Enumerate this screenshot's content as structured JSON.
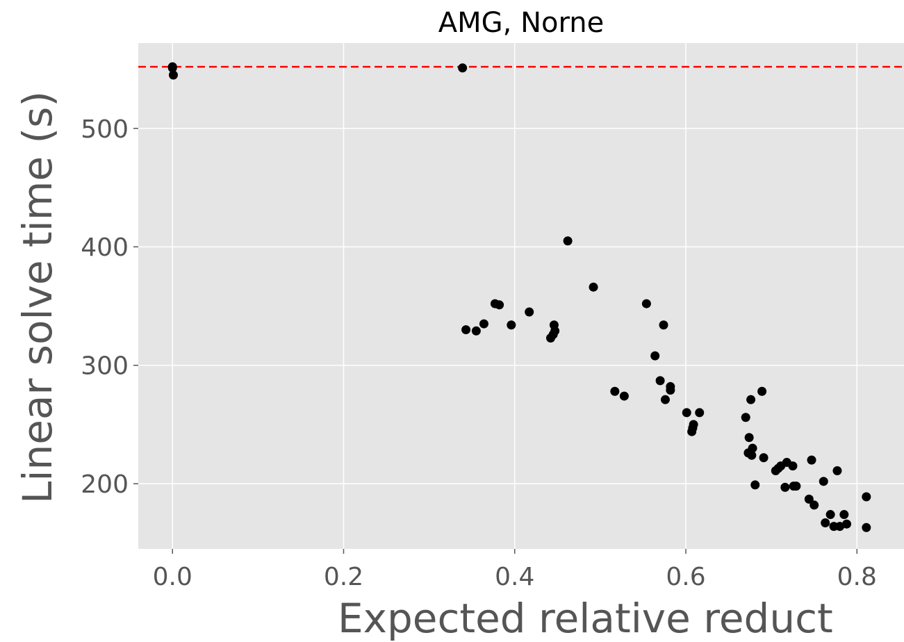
{
  "chart_data": {
    "type": "scatter",
    "title": "AMG, Norne",
    "xlabel": "Expected relative reduct",
    "ylabel": "Linear solve time (s)",
    "xlim": [
      -0.04,
      0.855
    ],
    "ylim": [
      145,
      572
    ],
    "xticks": [
      {
        "value": 0.0,
        "label": "0.0"
      },
      {
        "value": 0.2,
        "label": "0.2"
      },
      {
        "value": 0.4,
        "label": "0.4"
      },
      {
        "value": 0.6,
        "label": "0.6"
      },
      {
        "value": 0.8,
        "label": "0.8"
      }
    ],
    "yticks": [
      {
        "value": 200,
        "label": "200"
      },
      {
        "value": 300,
        "label": "300"
      },
      {
        "value": 400,
        "label": "400"
      },
      {
        "value": 500,
        "label": "500"
      }
    ],
    "grid": true,
    "background_color": "#e5e5e5",
    "point_color": "#000000",
    "reference_line": {
      "y": 552,
      "color": "#ff0000",
      "style": "dashed"
    },
    "series": [
      {
        "points": [
          [
            0.0,
            552
          ],
          [
            0.0,
            551
          ],
          [
            0.001,
            545
          ],
          [
            0.339,
            551
          ],
          [
            0.343,
            330
          ],
          [
            0.355,
            329
          ],
          [
            0.364,
            335
          ],
          [
            0.377,
            352
          ],
          [
            0.382,
            351
          ],
          [
            0.396,
            334
          ],
          [
            0.417,
            345
          ],
          [
            0.442,
            323
          ],
          [
            0.445,
            326
          ],
          [
            0.446,
            334
          ],
          [
            0.447,
            329
          ],
          [
            0.462,
            405
          ],
          [
            0.492,
            366
          ],
          [
            0.517,
            278
          ],
          [
            0.528,
            274
          ],
          [
            0.554,
            352
          ],
          [
            0.564,
            308
          ],
          [
            0.57,
            287
          ],
          [
            0.574,
            334
          ],
          [
            0.576,
            271
          ],
          [
            0.582,
            282
          ],
          [
            0.582,
            279
          ],
          [
            0.601,
            260
          ],
          [
            0.607,
            244
          ],
          [
            0.608,
            247
          ],
          [
            0.609,
            250
          ],
          [
            0.616,
            260
          ],
          [
            0.67,
            256
          ],
          [
            0.673,
            226
          ],
          [
            0.674,
            239
          ],
          [
            0.676,
            271
          ],
          [
            0.677,
            224
          ],
          [
            0.678,
            230
          ],
          [
            0.681,
            199
          ],
          [
            0.689,
            278
          ],
          [
            0.691,
            222
          ],
          [
            0.705,
            211
          ],
          [
            0.708,
            213
          ],
          [
            0.711,
            215
          ],
          [
            0.716,
            197
          ],
          [
            0.718,
            218
          ],
          [
            0.725,
            215
          ],
          [
            0.726,
            198
          ],
          [
            0.729,
            198
          ],
          [
            0.744,
            187
          ],
          [
            0.747,
            220
          ],
          [
            0.75,
            182
          ],
          [
            0.761,
            202
          ],
          [
            0.763,
            167
          ],
          [
            0.769,
            174
          ],
          [
            0.773,
            164
          ],
          [
            0.777,
            211
          ],
          [
            0.78,
            164
          ],
          [
            0.785,
            174
          ],
          [
            0.788,
            166
          ],
          [
            0.811,
            189
          ],
          [
            0.811,
            163
          ]
        ]
      }
    ]
  }
}
